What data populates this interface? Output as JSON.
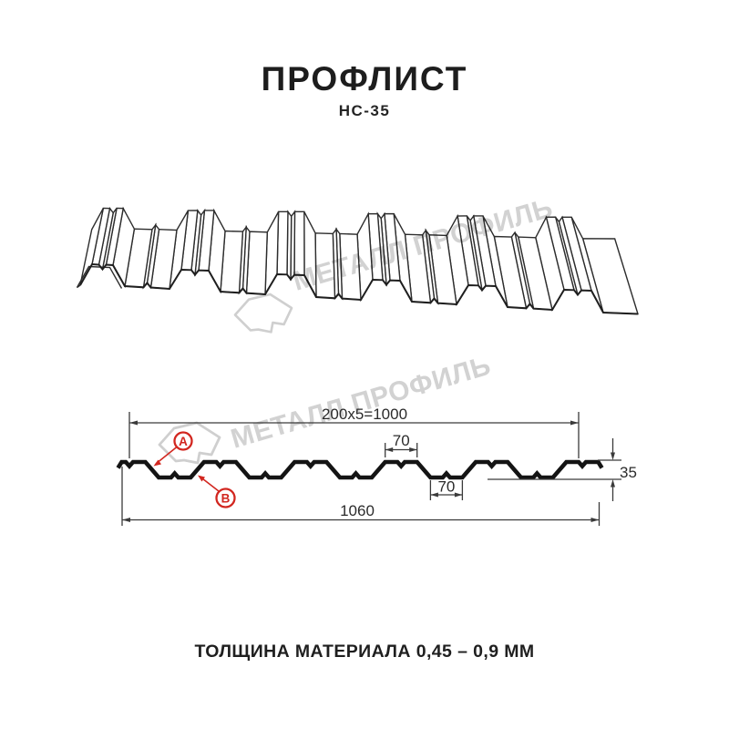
{
  "header": {
    "title": "ПРОФЛИСТ",
    "subtitle": "НС-35"
  },
  "watermark": {
    "text": "МЕТАЛЛ ПРОФИЛЬ",
    "logo": "metall-profil-hexagon"
  },
  "cross_section": {
    "dim_pitch": "200x5=1000",
    "dim_rib_top": "70",
    "dim_rib_bottom": "70",
    "dim_height": "35",
    "dim_overall": "1060",
    "callout_a": "A",
    "callout_b": "B"
  },
  "footer": {
    "text": "ТОЛЩИНА МАТЕРИАЛА 0,45 – 0,9 ММ"
  },
  "colors": {
    "ink": "#141414",
    "drawing_line": "#2d2d2d",
    "dimension_line": "#3a3a3a",
    "accent_red": "#d22720",
    "watermark_gray": "#d2d2d2",
    "background": "#ffffff"
  }
}
